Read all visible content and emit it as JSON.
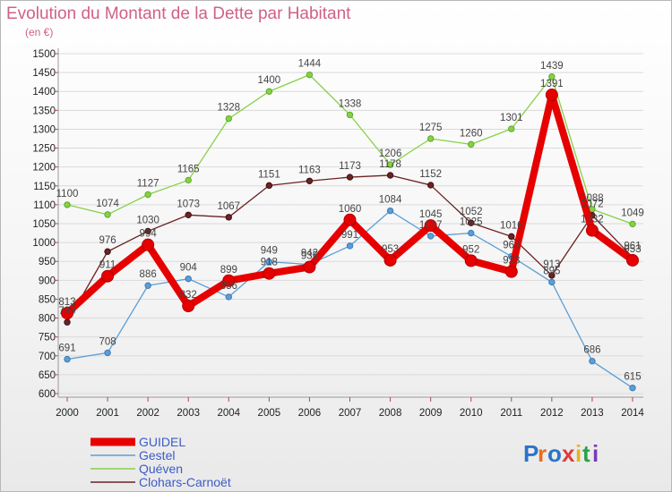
{
  "header": {
    "title": "Evolution du Montant de la Dette par Habitant",
    "unit": "(en €)"
  },
  "brand": {
    "logo": "Proxiti"
  },
  "chart_data": {
    "type": "line",
    "title": "Evolution du Montant de la Dette par Habitant",
    "ylabel": "(en €)",
    "xlabel": "",
    "ylim": [
      600,
      1500
    ],
    "ytick_step": 50,
    "grid": "horizontal",
    "legend_position": "bottom-left",
    "x": [
      "2000",
      "2001",
      "2002",
      "2003",
      "2004",
      "2005",
      "2006",
      "2007",
      "2008",
      "2009",
      "2010",
      "2011",
      "2012",
      "2013",
      "2014"
    ],
    "series": [
      {
        "name": "GUIDEL",
        "color": "#e60000",
        "values": [
          813,
          911,
          994,
          832,
          899,
          918,
          935,
          1060,
          953,
          1045,
          952,
          923,
          1391,
          1032,
          953
        ]
      },
      {
        "name": "Gestel",
        "color": "#5b9fd6",
        "values": [
          691,
          708,
          886,
          904,
          856,
          949,
          942,
          991,
          1084,
          1017,
          1025,
          963,
          895,
          686,
          615
        ]
      },
      {
        "name": "Quéven",
        "color": "#86d245",
        "values": [
          1100,
          1074,
          1127,
          1165,
          1328,
          1400,
          1444,
          1338,
          1206,
          1275,
          1260,
          1301,
          1439,
          1088,
          1049
        ]
      },
      {
        "name": "Clohars-Carnoët",
        "color": "#6b2323",
        "values": [
          789,
          976,
          1030,
          1073,
          1067,
          1151,
          1163,
          1173,
          1178,
          1152,
          1052,
          1016,
          913,
          1072,
          961
        ]
      }
    ]
  }
}
